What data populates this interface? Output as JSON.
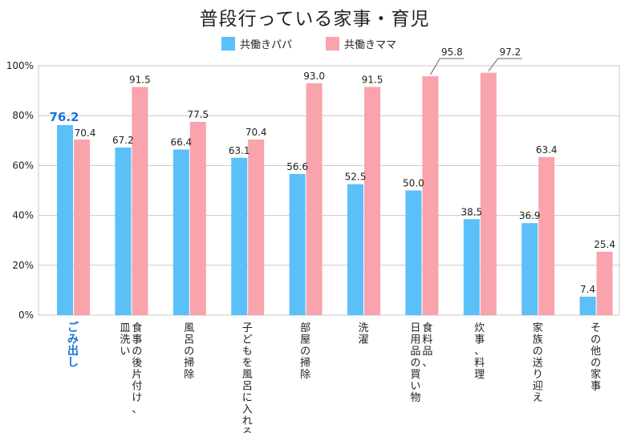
{
  "colors": {
    "papa": "#5bbff8",
    "mama": "#f9a3ac",
    "highlight": "#1a73d9",
    "grid": "#c8c8c8",
    "text": "#222222",
    "leader": "#666666"
  },
  "chart_data": {
    "type": "bar",
    "title": "普段行っている家事・育児",
    "xlabel": "",
    "ylabel": "",
    "ylim": [
      0,
      100
    ],
    "yticks": [
      "0%",
      "20%",
      "40%",
      "60%",
      "80%",
      "100%"
    ],
    "ytick_values": [
      0,
      20,
      40,
      60,
      80,
      100
    ],
    "grid": true,
    "legend_position": "top-center",
    "highlight_category_index": 0,
    "categories": [
      "ごみ出し",
      "食事の後片付け、皿洗い",
      "風呂の掃除",
      "子どもを風呂に入れる",
      "部屋の掃除",
      "洗濯",
      "食料品、日用品の買い物",
      "炊事、料理",
      "家族の送り迎え",
      "その他の家事"
    ],
    "category_lines": [
      [
        "ごみ出し"
      ],
      [
        "食事の後片付け、",
        "皿洗い"
      ],
      [
        "風呂の掃除"
      ],
      [
        "子どもを風呂に入れる"
      ],
      [
        "部屋の掃除"
      ],
      [
        "洗濯"
      ],
      [
        "食料品、",
        "日用品の買い物"
      ],
      [
        "炊事、料理"
      ],
      [
        "家族の送り迎え"
      ],
      [
        "その他の家事"
      ]
    ],
    "series": [
      {
        "name": "共働きパパ",
        "color_key": "papa",
        "values": [
          76.2,
          67.2,
          66.4,
          63.1,
          56.6,
          52.5,
          50.0,
          38.5,
          36.9,
          7.4
        ],
        "labels": [
          "76.2",
          "67.2",
          "66.4",
          "63.1",
          "56.6",
          "52.5",
          "50.0",
          "38.5",
          "36.9",
          "7.4"
        ]
      },
      {
        "name": "共働きママ",
        "color_key": "mama",
        "values": [
          70.4,
          91.5,
          77.5,
          70.4,
          93.0,
          91.5,
          95.8,
          97.2,
          63.4,
          25.4
        ],
        "labels": [
          "70.4",
          "91.5",
          "77.5",
          "70.4",
          "93.0",
          "91.5",
          "95.8",
          "97.2",
          "63.4",
          "25.4"
        ]
      }
    ]
  }
}
